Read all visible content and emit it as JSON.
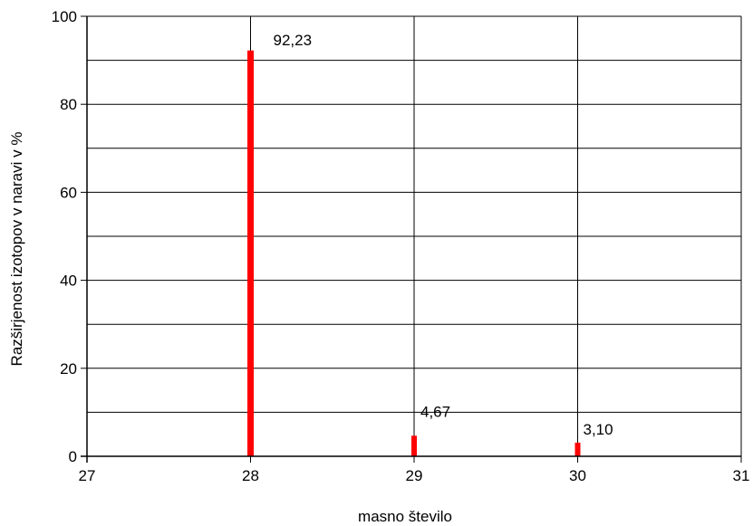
{
  "chart_data": {
    "type": "bar",
    "xlabel": "masno število",
    "ylabel": "Razširjenost izotopov v naravi v %",
    "xlim": [
      27,
      31
    ],
    "ylim": [
      0,
      100
    ],
    "x_ticks": [
      "27",
      "28",
      "29",
      "30",
      "31"
    ],
    "y_ticks": [
      "0",
      "20",
      "40",
      "60",
      "80",
      "100"
    ],
    "y_grid_step": 10,
    "grid": true,
    "x": [
      28,
      29,
      30
    ],
    "values": [
      92.23,
      4.67,
      3.1
    ],
    "data_labels": [
      "92,23",
      "4,67",
      "3,10"
    ],
    "bar_color": "#ff0000"
  }
}
